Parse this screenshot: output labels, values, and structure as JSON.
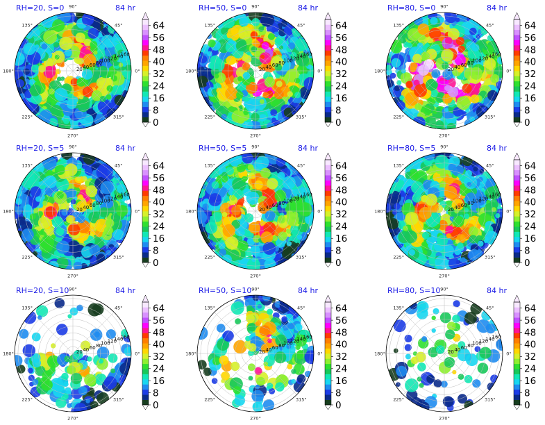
{
  "chart_data": {
    "type": "heatmap",
    "layout": {
      "rows": 3,
      "cols": 3
    },
    "projection": "polar",
    "angle_ticks": [
      "0°",
      "45°",
      "90°",
      "135°",
      "180°",
      "225°",
      "270°",
      "315°"
    ],
    "radial_ticks": [
      "20",
      "40",
      "60",
      "80",
      "100",
      "120",
      "140",
      "160"
    ],
    "radial_range": [
      0,
      170
    ],
    "grid": true,
    "colorbar": {
      "ticks": [
        "0",
        "8",
        "16",
        "24",
        "32",
        "40",
        "48",
        "56",
        "64"
      ],
      "range": [
        0,
        68
      ],
      "extend": "both",
      "colors": [
        "#173d1f",
        "#0a2a8a",
        "#1c3ce6",
        "#1f8cf0",
        "#18d6f0",
        "#12e8b4",
        "#18c85a",
        "#2fe02f",
        "#8ef030",
        "#d6f02a",
        "#ffd700",
        "#ffa500",
        "#ff7f00",
        "#ff3b00",
        "#ff1493",
        "#ff00ff",
        "#c050ff",
        "#d890ff",
        "#ecc0ff",
        "#f8e8ff"
      ]
    },
    "panels": [
      {
        "title": "RH=20, S=0",
        "time": "84 hr",
        "intensity": 0.72,
        "coverage": 1.0,
        "eye": 0.16,
        "sector": null
      },
      {
        "title": "RH=50, S=0",
        "time": "84 hr",
        "intensity": 0.82,
        "coverage": 0.9,
        "eye": 0.1,
        "sector": null
      },
      {
        "title": "RH=80, S=0",
        "time": "84 hr",
        "intensity": 0.95,
        "coverage": 0.72,
        "eye": 0.06,
        "sector": null
      },
      {
        "title": "RH=20, S=5",
        "time": "84 hr",
        "intensity": 0.68,
        "coverage": 0.92,
        "eye": 0.04,
        "sector": null
      },
      {
        "title": "RH=50, S=5",
        "time": "84 hr",
        "intensity": 0.74,
        "coverage": 0.9,
        "eye": 0.12,
        "sector": null
      },
      {
        "title": "RH=80, S=5",
        "time": "84 hr",
        "intensity": 0.72,
        "coverage": 0.84,
        "eye": 0.06,
        "sector": null
      },
      {
        "title": "RH=20, S=10",
        "time": "84 hr",
        "intensity": 0.55,
        "coverage": 0.3,
        "eye": 0.0,
        "sector": "bottom"
      },
      {
        "title": "RH=50, S=10",
        "time": "84 hr",
        "intensity": 0.7,
        "coverage": 0.5,
        "eye": 0.0,
        "sector": "top-right"
      },
      {
        "title": "RH=80, S=10",
        "time": "84 hr",
        "intensity": 0.48,
        "coverage": 0.14,
        "eye": 0.0,
        "sector": null
      }
    ]
  }
}
